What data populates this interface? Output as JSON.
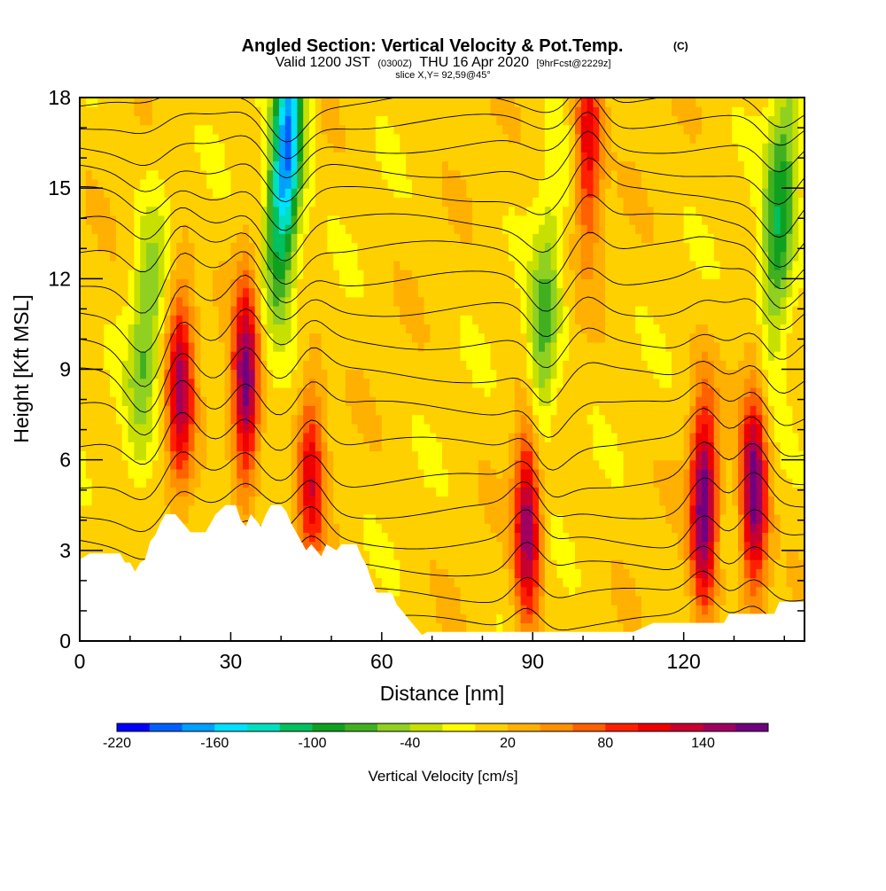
{
  "title": {
    "main": "Angled Section: Vertical Velocity & Pot.Temp.",
    "tag": "(C)",
    "valid_prefix": "Valid 1200 JST",
    "valid_zulu": "(0300Z)",
    "valid_date": "THU 16 Apr 2020",
    "forecast": "[9hrFcst@2229z]",
    "slice": "slice X,Y= 92,59@45°"
  },
  "chart_data": {
    "type": "heatmap",
    "xlabel": "Distance [nm]",
    "ylabel": "Height [Kft MSL]",
    "xlim": [
      0,
      144
    ],
    "ylim": [
      0,
      18
    ],
    "x_ticks": [
      0,
      30,
      60,
      90,
      120
    ],
    "y_ticks": [
      0,
      3,
      6,
      9,
      12,
      15,
      18
    ],
    "grid": false,
    "field": "Vertical Velocity [cm/s]",
    "contour_field": "Potential Temperature",
    "colorbar": {
      "title": "Vertical Velocity [cm/s]",
      "min": -220,
      "max": 180,
      "step": 20,
      "tick_labels": [
        -220,
        -160,
        -100,
        -40,
        20,
        80,
        140
      ],
      "colors": [
        "#0000ff",
        "#0060ff",
        "#00a0ff",
        "#00e0ff",
        "#00e0c0",
        "#00c060",
        "#10a020",
        "#40b020",
        "#90d020",
        "#c8e000",
        "#ffff00",
        "#ffd000",
        "#ffb000",
        "#ff9000",
        "#ff6000",
        "#ff2000",
        "#ee0000",
        "#c80030",
        "#a00060",
        "#700080"
      ]
    },
    "updrafts": [
      {
        "x": 20,
        "z": 8.5,
        "w": 130
      },
      {
        "x": 33,
        "z": 8.5,
        "w": 160
      },
      {
        "x": 46,
        "z": 5.5,
        "w": 100
      },
      {
        "x": 89,
        "z": 4.0,
        "w": 160
      },
      {
        "x": 101,
        "z": 16.5,
        "w": 110
      },
      {
        "x": 124,
        "z": 4.5,
        "w": 170
      },
      {
        "x": 134,
        "z": 5.0,
        "w": 170
      }
    ],
    "downdrafts": [
      {
        "x": 13,
        "z": 10,
        "w": -70
      },
      {
        "x": 41,
        "z": 16,
        "w": -200
      },
      {
        "x": 92,
        "z": 10,
        "w": -80
      },
      {
        "x": 139,
        "z": 14,
        "w": -110
      }
    ],
    "terrain_kft": [
      [
        0,
        2.7
      ],
      [
        2,
        2.9
      ],
      [
        8,
        2.9
      ],
      [
        9,
        2.6
      ],
      [
        10,
        2.6
      ],
      [
        11,
        2.3
      ],
      [
        12,
        2.6
      ],
      [
        13,
        2.7
      ],
      [
        14,
        3.3
      ],
      [
        15,
        3.5
      ],
      [
        16,
        3.9
      ],
      [
        17,
        4.2
      ],
      [
        19,
        4.2
      ],
      [
        20,
        4.0
      ],
      [
        21,
        3.8
      ],
      [
        22,
        3.6
      ],
      [
        25,
        3.6
      ],
      [
        26,
        3.9
      ],
      [
        27,
        4.2
      ],
      [
        29,
        4.5
      ],
      [
        31,
        4.5
      ],
      [
        32,
        4.0
      ],
      [
        33,
        3.8
      ],
      [
        34,
        4.2
      ],
      [
        36,
        3.8
      ],
      [
        37,
        4.2
      ],
      [
        38,
        4.5
      ],
      [
        40,
        4.5
      ],
      [
        41,
        4.3
      ],
      [
        42,
        3.9
      ],
      [
        43,
        3.6
      ],
      [
        44,
        3.3
      ],
      [
        45,
        3.0
      ],
      [
        46,
        3.2
      ],
      [
        47,
        3.0
      ],
      [
        48,
        2.8
      ],
      [
        49,
        3.2
      ],
      [
        51,
        3.0
      ],
      [
        52,
        3.2
      ],
      [
        55,
        3.2
      ],
      [
        56,
        2.8
      ],
      [
        57,
        2.5
      ],
      [
        58,
        2.0
      ],
      [
        59,
        1.6
      ],
      [
        62,
        1.6
      ],
      [
        63,
        1.2
      ],
      [
        64,
        1.0
      ],
      [
        65,
        0.8
      ],
      [
        66,
        0.6
      ],
      [
        67,
        0.4
      ],
      [
        68,
        0.2
      ],
      [
        69,
        0.3
      ],
      [
        110,
        0.3
      ],
      [
        114,
        0.6
      ],
      [
        128,
        0.6
      ],
      [
        129,
        0.9
      ],
      [
        138,
        0.9
      ],
      [
        139,
        1.3
      ],
      [
        144,
        1.3
      ]
    ]
  }
}
